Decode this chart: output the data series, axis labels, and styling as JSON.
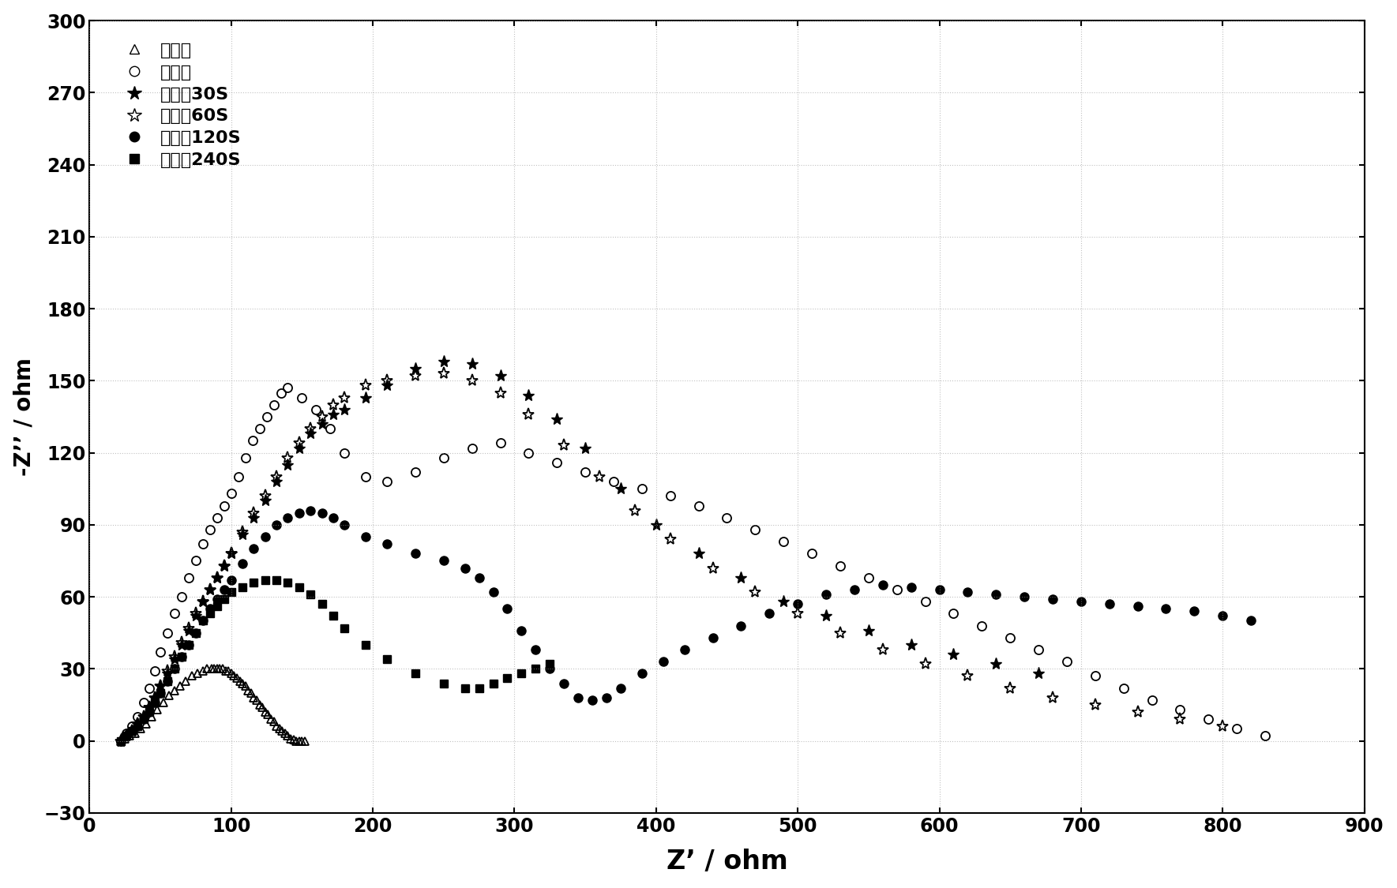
{
  "title": "",
  "xlabel": "Z’ / ohm",
  "ylabel": "-Z’’ / ohm",
  "xlim": [
    0,
    900
  ],
  "ylim": [
    -30,
    300
  ],
  "xticks": [
    0,
    100,
    200,
    300,
    400,
    500,
    600,
    700,
    800,
    900
  ],
  "yticks": [
    -30,
    0,
    30,
    60,
    90,
    120,
    150,
    180,
    210,
    240,
    270,
    300
  ],
  "background_color": "#ffffff",
  "grid_color": "#999999",
  "series": [
    {
      "label": "未镰化",
      "marker": "^",
      "fillstyle": "none",
      "markersize": 7,
      "x": [
        22,
        25,
        28,
        32,
        36,
        40,
        44,
        48,
        52,
        56,
        60,
        64,
        68,
        72,
        76,
        80,
        83,
        86,
        88,
        90,
        92,
        94,
        96,
        98,
        100,
        102,
        104,
        106,
        108,
        110,
        112,
        114,
        116,
        118,
        120,
        122,
        124,
        126,
        128,
        130,
        132,
        134,
        136,
        138,
        140,
        142,
        144,
        146,
        148,
        150,
        152
      ],
      "y": [
        0,
        1,
        2,
        3,
        5,
        7,
        10,
        13,
        16,
        19,
        21,
        23,
        25,
        27,
        28,
        29,
        30,
        30,
        30,
        30,
        30,
        30,
        29,
        29,
        28,
        27,
        26,
        25,
        24,
        23,
        21,
        20,
        18,
        17,
        15,
        14,
        12,
        11,
        9,
        8,
        6,
        5,
        4,
        3,
        2,
        1,
        0.5,
        0,
        0,
        0,
        0
      ]
    },
    {
      "label": "锃镰化",
      "marker": "o",
      "fillstyle": "none",
      "markersize": 8,
      "x": [
        22,
        26,
        30,
        34,
        38,
        42,
        46,
        50,
        55,
        60,
        65,
        70,
        75,
        80,
        85,
        90,
        95,
        100,
        105,
        110,
        115,
        120,
        125,
        130,
        135,
        140,
        150,
        160,
        170,
        180,
        195,
        210,
        230,
        250,
        270,
        290,
        310,
        330,
        350,
        370,
        390,
        410,
        430,
        450,
        470,
        490,
        510,
        530,
        550,
        570,
        590,
        610,
        630,
        650,
        670,
        690,
        710,
        730,
        750,
        770,
        790,
        810,
        830
      ],
      "y": [
        0,
        3,
        6,
        10,
        16,
        22,
        29,
        37,
        45,
        53,
        60,
        68,
        75,
        82,
        88,
        93,
        98,
        103,
        110,
        118,
        125,
        130,
        135,
        140,
        145,
        147,
        143,
        138,
        130,
        120,
        110,
        108,
        112,
        118,
        122,
        124,
        120,
        116,
        112,
        108,
        105,
        102,
        98,
        93,
        88,
        83,
        78,
        73,
        68,
        63,
        58,
        53,
        48,
        43,
        38,
        33,
        27,
        22,
        17,
        13,
        9,
        5,
        2
      ]
    },
    {
      "label": "醙镰制30S",
      "marker": "*",
      "fillstyle": "full",
      "markersize": 11,
      "x": [
        22,
        26,
        30,
        34,
        38,
        42,
        46,
        50,
        55,
        60,
        65,
        70,
        75,
        80,
        85,
        90,
        95,
        100,
        108,
        116,
        124,
        132,
        140,
        148,
        156,
        164,
        172,
        180,
        195,
        210,
        230,
        250,
        270,
        290,
        310,
        330,
        350,
        375,
        400,
        430,
        460,
        490,
        520,
        550,
        580,
        610,
        640,
        670
      ],
      "y": [
        0,
        2,
        4,
        7,
        10,
        14,
        18,
        23,
        28,
        34,
        40,
        46,
        52,
        58,
        63,
        68,
        73,
        78,
        86,
        93,
        100,
        108,
        115,
        122,
        128,
        132,
        136,
        138,
        143,
        148,
        155,
        158,
        157,
        152,
        144,
        134,
        122,
        105,
        90,
        78,
        68,
        58,
        52,
        46,
        40,
        36,
        32,
        28
      ]
    },
    {
      "label": "醙镰制60S",
      "marker": "*",
      "fillstyle": "none",
      "markersize": 11,
      "x": [
        22,
        26,
        30,
        34,
        38,
        42,
        46,
        50,
        55,
        60,
        65,
        70,
        75,
        80,
        85,
        90,
        95,
        100,
        108,
        116,
        124,
        132,
        140,
        148,
        156,
        164,
        172,
        180,
        195,
        210,
        230,
        250,
        270,
        290,
        310,
        335,
        360,
        385,
        410,
        440,
        470,
        500,
        530,
        560,
        590,
        620,
        650,
        680,
        710,
        740,
        770,
        800
      ],
      "y": [
        0,
        2,
        4,
        7,
        10,
        14,
        18,
        23,
        29,
        35,
        41,
        47,
        53,
        58,
        63,
        68,
        73,
        78,
        87,
        95,
        102,
        110,
        118,
        124,
        130,
        135,
        140,
        143,
        148,
        150,
        152,
        153,
        150,
        145,
        136,
        123,
        110,
        96,
        84,
        72,
        62,
        53,
        45,
        38,
        32,
        27,
        22,
        18,
        15,
        12,
        9,
        6
      ]
    },
    {
      "label": "醙镰制120S",
      "marker": "o",
      "fillstyle": "full",
      "markersize": 8,
      "x": [
        22,
        26,
        30,
        34,
        38,
        42,
        46,
        50,
        55,
        60,
        65,
        70,
        75,
        80,
        85,
        90,
        95,
        100,
        108,
        116,
        124,
        132,
        140,
        148,
        156,
        164,
        172,
        180,
        195,
        210,
        230,
        250,
        265,
        275,
        285,
        295,
        305,
        315,
        325,
        335,
        345,
        355,
        365,
        375,
        390,
        405,
        420,
        440,
        460,
        480,
        500,
        520,
        540,
        560,
        580,
        600,
        620,
        640,
        660,
        680,
        700,
        720,
        740,
        760,
        780,
        800,
        820
      ],
      "y": [
        0,
        2,
        4,
        6,
        9,
        12,
        16,
        20,
        25,
        30,
        35,
        40,
        45,
        50,
        55,
        59,
        63,
        67,
        74,
        80,
        85,
        90,
        93,
        95,
        96,
        95,
        93,
        90,
        85,
        82,
        78,
        75,
        72,
        68,
        62,
        55,
        46,
        38,
        30,
        24,
        18,
        17,
        18,
        22,
        28,
        33,
        38,
        43,
        48,
        53,
        57,
        61,
        63,
        65,
        64,
        63,
        62,
        61,
        60,
        59,
        58,
        57,
        56,
        55,
        54,
        52,
        50
      ]
    },
    {
      "label": "醙镰制240S",
      "marker": "s",
      "fillstyle": "full",
      "markersize": 7,
      "x": [
        22,
        26,
        30,
        34,
        38,
        42,
        46,
        50,
        55,
        60,
        65,
        70,
        75,
        80,
        85,
        90,
        95,
        100,
        108,
        116,
        124,
        132,
        140,
        148,
        156,
        164,
        172,
        180,
        195,
        210,
        230,
        250,
        265,
        275,
        285,
        295,
        305,
        315,
        325
      ],
      "y": [
        0,
        2,
        4,
        6,
        9,
        12,
        16,
        20,
        25,
        30,
        35,
        40,
        45,
        50,
        53,
        56,
        59,
        62,
        64,
        66,
        67,
        67,
        66,
        64,
        61,
        57,
        52,
        47,
        40,
        34,
        28,
        24,
        22,
        22,
        24,
        26,
        28,
        30,
        32
      ]
    }
  ],
  "legend_labels": [
    "未镰化",
    "锃镰化",
    "醙镰制30S",
    "醙镰制60S",
    "醙镰制120S",
    "醙镰制240S"
  ],
  "fontsize_tick": 17,
  "xlabel_fontsize": 24,
  "ylabel_fontsize": 20,
  "fontsize_legend": 16
}
